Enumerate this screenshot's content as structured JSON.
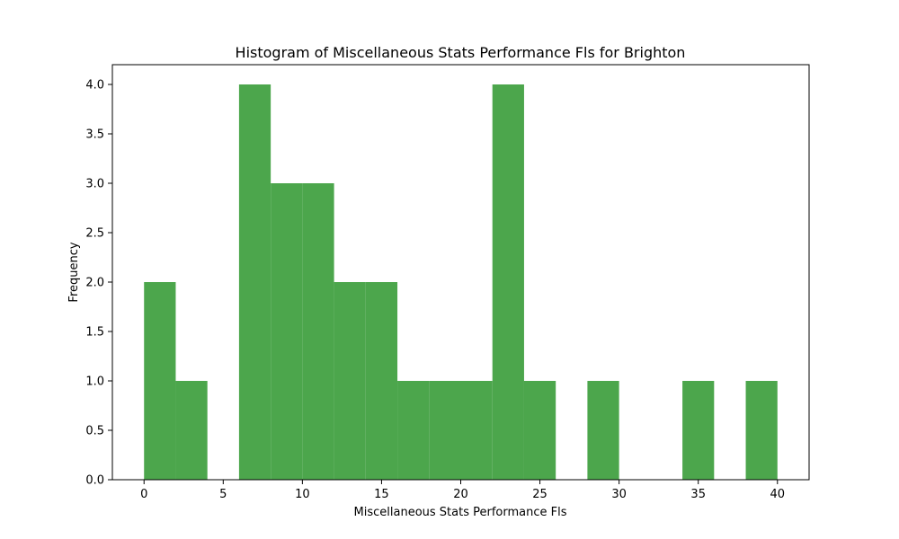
{
  "chart_data": {
    "type": "bar",
    "title": "Histogram of Miscellaneous Stats Performance Fls for Brighton",
    "xlabel": "Miscellaneous Stats Performance Fls",
    "ylabel": "Frequency",
    "bin_edges": [
      0,
      2,
      4,
      6,
      8,
      10,
      12,
      14,
      16,
      18,
      20,
      22,
      24,
      26,
      28,
      30,
      32,
      34,
      36,
      38,
      40
    ],
    "values": [
      2,
      1,
      0,
      4,
      3,
      3,
      2,
      2,
      1,
      1,
      1,
      4,
      1,
      0,
      1,
      0,
      0,
      1,
      0,
      1
    ],
    "xlim": [
      -2,
      42
    ],
    "ylim": [
      0,
      4.2
    ],
    "xticks": [
      0,
      5,
      10,
      15,
      20,
      25,
      30,
      35,
      40
    ],
    "yticks": [
      "0.0",
      "0.5",
      "1.0",
      "1.5",
      "2.0",
      "2.5",
      "3.0",
      "3.5",
      "4.0"
    ],
    "bar_color": "#4ca64c",
    "grid": false,
    "legend": "none"
  }
}
